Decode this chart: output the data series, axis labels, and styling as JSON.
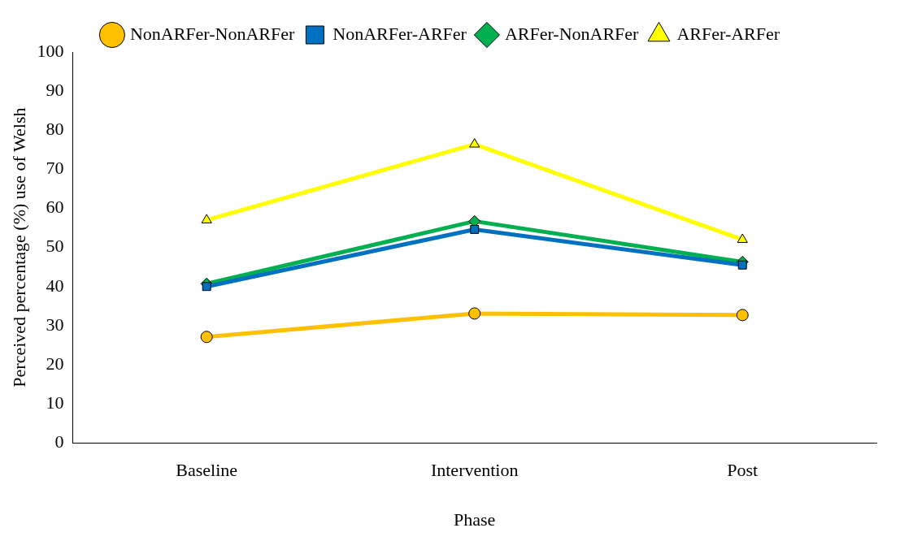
{
  "chart_data": {
    "type": "line",
    "xlabel": "Phase",
    "ylabel": "Perceived percentage (%) use of Welsh",
    "categories": [
      "Baseline",
      "Intervention",
      "Post"
    ],
    "series": [
      {
        "name": "ARFer-ARFer",
        "color": "#ffff00",
        "marker": "triangle",
        "values": [
          57,
          76.4,
          52
        ]
      },
      {
        "name": "ARFer-NonARFer",
        "color": "#00b050",
        "marker": "diamond",
        "values": [
          40.7,
          56.7,
          46.3
        ]
      },
      {
        "name": "NonARFer-ARFer",
        "color": "#0070c0",
        "marker": "square",
        "values": [
          40,
          54.6,
          45.5
        ]
      },
      {
        "name": "NonARFer-NonARFer",
        "color": "#ffc000",
        "marker": "circle",
        "values": [
          27.1,
          33.1,
          32.7
        ]
      }
    ],
    "ylim": [
      0,
      100
    ],
    "yticks": [
      0,
      10,
      20,
      30,
      40,
      50,
      60,
      70,
      80,
      90,
      100
    ],
    "grid": false,
    "legend": "top"
  }
}
